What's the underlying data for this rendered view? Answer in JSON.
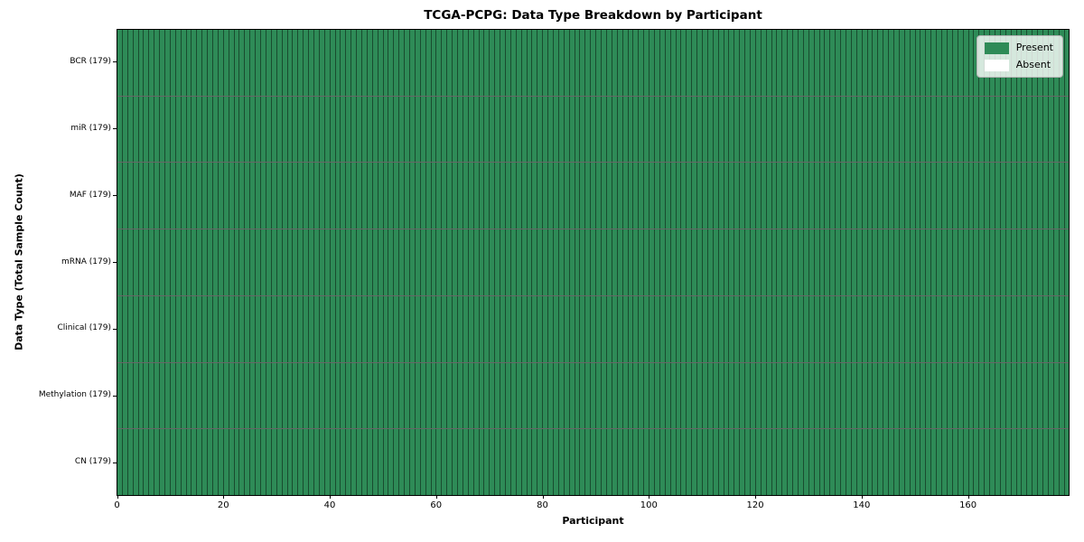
{
  "chart_data": {
    "type": "heatmap",
    "title": "TCGA-PCPG: Data Type Breakdown by Participant",
    "xlabel": "Participant",
    "ylabel": "Data Type (Total Sample Count)",
    "n_participants": 179,
    "xlim": [
      0,
      179
    ],
    "x_ticks": [
      0,
      20,
      40,
      60,
      80,
      100,
      120,
      140,
      160
    ],
    "grid": false,
    "legend_position": "upper right",
    "legend": [
      {
        "label": "Present",
        "color": "#2e8b57"
      },
      {
        "label": "Absent",
        "color": "#ffffff"
      }
    ],
    "series": [
      {
        "data_type": "BCR",
        "label": "BCR (179)",
        "total_samples": 179,
        "present": 179,
        "absent": 0
      },
      {
        "data_type": "miR",
        "label": "miR (179)",
        "total_samples": 179,
        "present": 179,
        "absent": 0
      },
      {
        "data_type": "MAF",
        "label": "MAF (179)",
        "total_samples": 179,
        "present": 179,
        "absent": 0
      },
      {
        "data_type": "mRNA",
        "label": "mRNA (179)",
        "total_samples": 179,
        "present": 179,
        "absent": 0
      },
      {
        "data_type": "Clinical",
        "label": "Clinical (179)",
        "total_samples": 179,
        "present": 179,
        "absent": 0
      },
      {
        "data_type": "Methylation",
        "label": "Methylation (179)",
        "total_samples": 179,
        "present": 179,
        "absent": 0
      },
      {
        "data_type": "CN",
        "label": "CN (179)",
        "total_samples": 179,
        "present": 179,
        "absent": 0
      }
    ],
    "colors": {
      "present": "#2e8b57",
      "absent": "#ffffff",
      "cell_border": "rgba(0,0,0,0.45)",
      "row_border": "rgba(0,0,0,0.6)",
      "spine": "#000000"
    }
  }
}
